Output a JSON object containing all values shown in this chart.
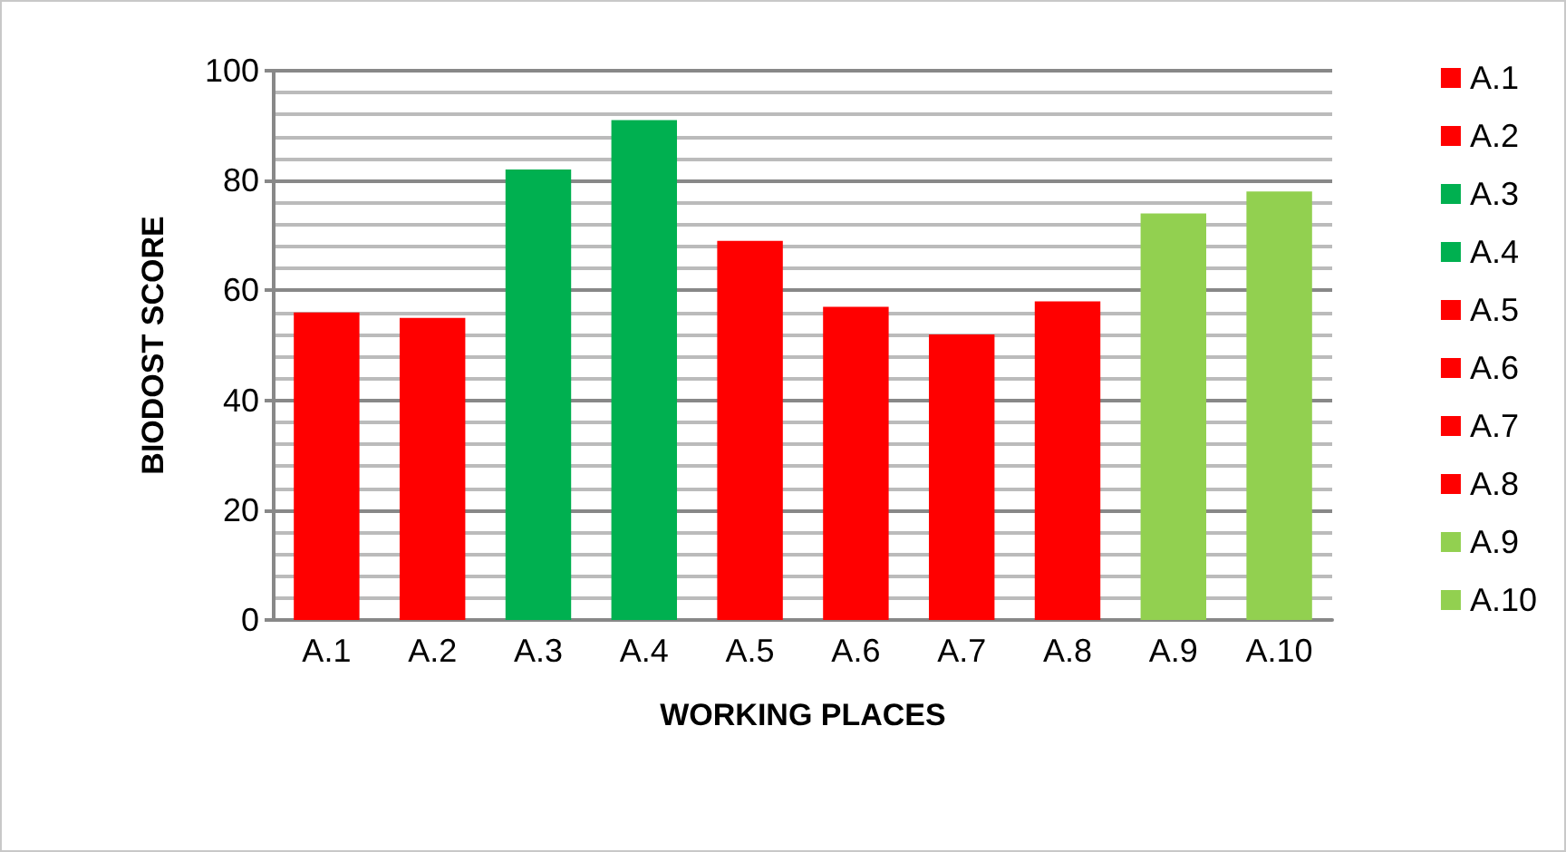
{
  "chart_data": {
    "type": "bar",
    "xlabel": "WORKING PLACES",
    "ylabel": "BIODOST SCORE",
    "categories": [
      "A.1",
      "A.2",
      "A.3",
      "A.4",
      "A.5",
      "A.6",
      "A.7",
      "A.8",
      "A.9",
      "A.10"
    ],
    "series": [
      {
        "name": "A.1",
        "color": "#ff0000",
        "values": [
          56,
          null,
          null,
          null,
          null,
          null,
          null,
          null,
          null,
          null
        ]
      },
      {
        "name": "A.2",
        "color": "#ff0000",
        "values": [
          null,
          55,
          null,
          null,
          null,
          null,
          null,
          null,
          null,
          null
        ]
      },
      {
        "name": "A.3",
        "color": "#00b050",
        "values": [
          null,
          null,
          82,
          null,
          null,
          null,
          null,
          null,
          null,
          null
        ]
      },
      {
        "name": "A.4",
        "color": "#00b050",
        "values": [
          null,
          null,
          null,
          91,
          null,
          null,
          null,
          null,
          null,
          null
        ]
      },
      {
        "name": "A.5",
        "color": "#ff0000",
        "values": [
          null,
          null,
          null,
          null,
          69,
          null,
          null,
          null,
          null,
          null
        ]
      },
      {
        "name": "A.6",
        "color": "#ff0000",
        "values": [
          null,
          null,
          null,
          null,
          null,
          57,
          null,
          null,
          null,
          null
        ]
      },
      {
        "name": "A.7",
        "color": "#ff0000",
        "values": [
          null,
          null,
          null,
          null,
          null,
          null,
          52,
          null,
          null,
          null
        ]
      },
      {
        "name": "A.8",
        "color": "#ff0000",
        "values": [
          null,
          null,
          null,
          null,
          null,
          null,
          null,
          58,
          null,
          null
        ]
      },
      {
        "name": "A.9",
        "color": "#92d050",
        "values": [
          null,
          null,
          null,
          null,
          null,
          null,
          null,
          null,
          74,
          null
        ]
      },
      {
        "name": "A.10",
        "color": "#92d050",
        "values": [
          null,
          null,
          null,
          null,
          null,
          null,
          null,
          null,
          null,
          78
        ]
      }
    ],
    "ylim": [
      0,
      100
    ],
    "yticks": [
      0,
      20,
      40,
      60,
      80,
      100
    ],
    "grid": true,
    "legend": "right"
  }
}
